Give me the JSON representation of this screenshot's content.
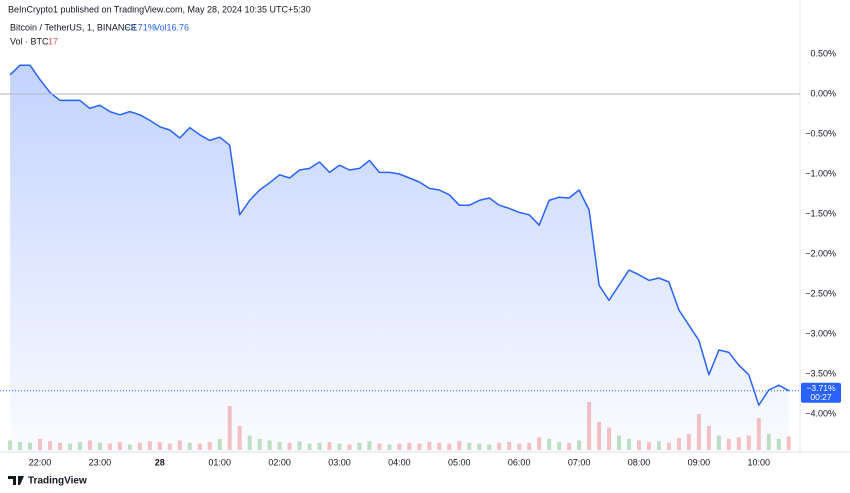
{
  "chart_data": {
    "type": "area",
    "header": "BeInCrypto1 published on TradingView.com, May 28, 2024 10:35 UTC+5:30",
    "legend": {
      "symbol": "Bitcoin / TetherUS, 1, BINANCE",
      "change": "−3.71%",
      "vol_inline": "Vol16.76",
      "vol_label": "Vol · BTC",
      "vol_value": "17"
    },
    "footer": "TradingView",
    "last_badge": {
      "label": "−3.71%",
      "timer": "00:27"
    },
    "x": [
      "21:30",
      "21:40",
      "21:50",
      "22:00",
      "22:10",
      "22:20",
      "22:30",
      "22:40",
      "22:50",
      "23:00",
      "23:10",
      "23:20",
      "23:30",
      "23:40",
      "23:50",
      "00:00",
      "00:10",
      "00:20",
      "00:30",
      "00:40",
      "00:50",
      "01:00",
      "01:10",
      "01:20",
      "01:30",
      "01:40",
      "01:50",
      "02:00",
      "02:10",
      "02:20",
      "02:30",
      "02:40",
      "02:50",
      "03:00",
      "03:10",
      "03:20",
      "03:30",
      "03:40",
      "03:50",
      "04:00",
      "04:10",
      "04:20",
      "04:30",
      "04:40",
      "04:50",
      "05:00",
      "05:10",
      "05:20",
      "05:30",
      "05:40",
      "05:50",
      "06:00",
      "06:10",
      "06:20",
      "06:30",
      "06:40",
      "06:50",
      "07:00",
      "07:10",
      "07:20",
      "07:30",
      "07:40",
      "07:50",
      "08:00",
      "08:10",
      "08:20",
      "08:30",
      "08:40",
      "08:50",
      "09:00",
      "09:10",
      "09:20",
      "09:30",
      "09:40",
      "09:50",
      "10:00",
      "10:10",
      "10:20",
      "10:30"
    ],
    "series": [
      {
        "name": "Bitcoin / TetherUS",
        "color": "#2962ff",
        "values": [
          0.24,
          0.36,
          0.36,
          0.18,
          0.02,
          -0.08,
          -0.08,
          -0.08,
          -0.18,
          -0.14,
          -0.22,
          -0.26,
          -0.22,
          -0.26,
          -0.33,
          -0.41,
          -0.45,
          -0.55,
          -0.42,
          -0.51,
          -0.58,
          -0.54,
          -0.64,
          -1.51,
          -1.33,
          -1.2,
          -1.11,
          -1.01,
          -1.05,
          -0.95,
          -0.93,
          -0.85,
          -0.98,
          -0.89,
          -0.95,
          -0.93,
          -0.83,
          -0.98,
          -0.98,
          -1.0,
          -1.05,
          -1.1,
          -1.18,
          -1.2,
          -1.26,
          -1.39,
          -1.39,
          -1.33,
          -1.3,
          -1.39,
          -1.43,
          -1.48,
          -1.51,
          -1.64,
          -1.33,
          -1.29,
          -1.3,
          -1.2,
          -1.45,
          -2.39,
          -2.58,
          -2.39,
          -2.2,
          -2.26,
          -2.33,
          -2.3,
          -2.35,
          -2.7,
          -2.89,
          -3.08,
          -3.51,
          -3.2,
          -3.23,
          -3.39,
          -3.51,
          -3.89,
          -3.7,
          -3.64,
          -3.71
        ]
      },
      {
        "name": "Vol · BTC",
        "color_up": "#a5d6a7",
        "color_down": "#f7a9a7",
        "values": [
          12,
          10,
          9,
          14,
          11,
          9,
          8,
          10,
          12,
          9,
          8,
          10,
          7,
          9,
          11,
          10,
          8,
          12,
          9,
          8,
          10,
          14,
          55,
          30,
          18,
          14,
          12,
          10,
          9,
          11,
          8,
          9,
          10,
          8,
          7,
          9,
          11,
          8,
          7,
          8,
          9,
          8,
          10,
          9,
          8,
          11,
          9,
          8,
          7,
          9,
          10,
          8,
          9,
          16,
          14,
          10,
          9,
          12,
          60,
          35,
          28,
          18,
          14,
          12,
          10,
          11,
          9,
          15,
          20,
          45,
          30,
          18,
          14,
          16,
          18,
          40,
          20,
          14,
          17
        ]
      }
    ],
    "xticks": [
      "22:00",
      "23:00",
      {
        "value": "00:00",
        "label": "28"
      },
      "01:00",
      "02:00",
      "03:00",
      "04:00",
      "05:00",
      "06:00",
      "07:00",
      "08:00",
      "09:00",
      "10:00"
    ],
    "ylim": [
      0.95,
      -4.43
    ],
    "yticks": [
      {
        "value": 0.5,
        "label": "0.50%"
      },
      {
        "value": 0,
        "label": "0.00%"
      },
      {
        "value": -0.5,
        "label": "−0.50%"
      },
      {
        "value": -1,
        "label": "−1.00%"
      },
      {
        "value": -1.5,
        "label": "−1.50%"
      },
      {
        "value": -2,
        "label": "−2.00%"
      },
      {
        "value": -2.5,
        "label": "−2.50%"
      },
      {
        "value": -3,
        "label": "−3.00%"
      },
      {
        "value": -3.5,
        "label": "−3.50%"
      },
      {
        "value": -4,
        "label": "−4.00%"
      }
    ],
    "baseline": 0
  }
}
